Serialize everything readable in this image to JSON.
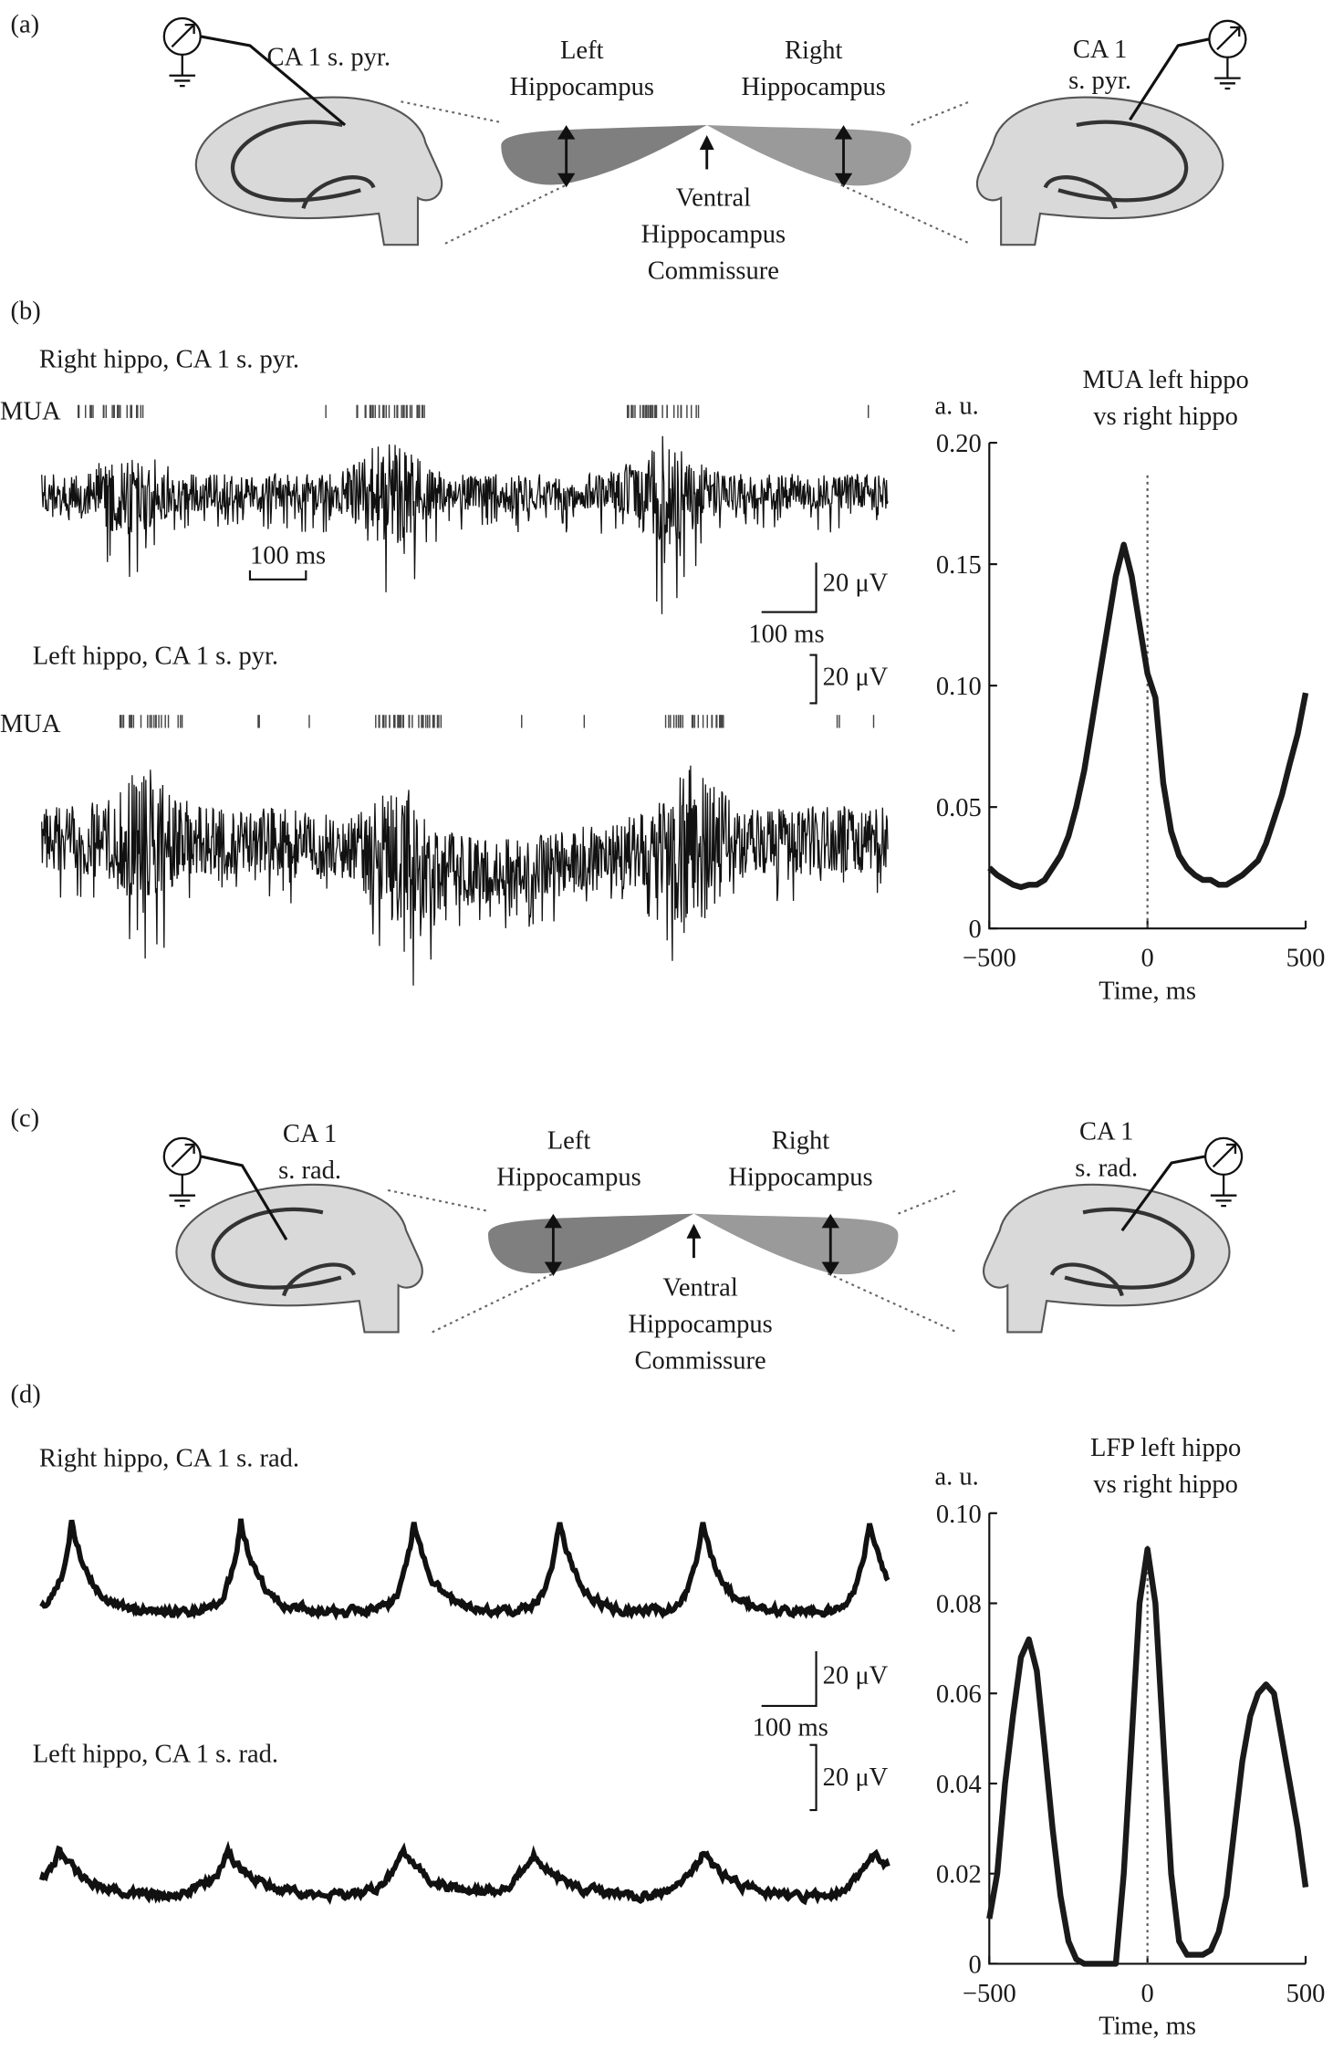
{
  "panel_labels": [
    "(a)",
    "(b)",
    "(c)",
    "(d)"
  ],
  "diagram_a": {
    "left_site": "CA 1 s. pyr.",
    "right_site": [
      "CA 1",
      "s. pyr."
    ],
    "left_label": [
      "Left",
      "Hippocampus"
    ],
    "right_label": [
      "Right",
      "Hippocampus"
    ],
    "commissure": [
      "Ventral",
      "Hippocampus",
      "Commissure"
    ]
  },
  "traces_b": {
    "top_label": "Right hippo, CA 1 s. pyr.",
    "mua_top": "MUA",
    "scale_time_inner": "100 ms",
    "scale_amp_top": "20 μV",
    "scale_time": "100 ms",
    "bottom_label": "Left hippo, CA 1 s. pyr.",
    "scale_amp_bottom": "20 μV",
    "mua_bottom": "MUA"
  },
  "diagram_c": {
    "left_site": [
      "CA 1",
      "s. rad."
    ],
    "right_site": [
      "CA 1",
      "s. rad."
    ],
    "left_label": [
      "Left",
      "Hippocampus"
    ],
    "right_label": [
      "Right",
      "Hippocampus"
    ],
    "commissure": [
      "Ventral",
      "Hippocampus",
      "Commissure"
    ]
  },
  "traces_d": {
    "top_label": "Right hippo, CA 1 s. rad.",
    "scale_amp_top": "20 μV",
    "scale_time": "100 ms",
    "bottom_label": "Left hippo, CA 1 s. rad.",
    "scale_amp_bottom": "20 μV"
  },
  "chart_data": [
    {
      "type": "line",
      "title": [
        "MUA left hippo",
        "vs right hippo"
      ],
      "ylabel": "a. u.",
      "xlabel": "Time, ms",
      "color": "#1a1a1a",
      "x": [
        -500,
        -475,
        -450,
        -425,
        -400,
        -375,
        -350,
        -325,
        -300,
        -275,
        -250,
        -225,
        -200,
        -175,
        -150,
        -125,
        -100,
        -75,
        -50,
        -25,
        0,
        25,
        50,
        75,
        100,
        125,
        150,
        175,
        200,
        225,
        250,
        275,
        300,
        325,
        350,
        375,
        400,
        425,
        450,
        475,
        500
      ],
      "values": [
        0.025,
        0.022,
        0.02,
        0.018,
        0.017,
        0.018,
        0.018,
        0.02,
        0.025,
        0.03,
        0.038,
        0.05,
        0.065,
        0.085,
        0.105,
        0.125,
        0.145,
        0.158,
        0.145,
        0.125,
        0.105,
        0.095,
        0.06,
        0.04,
        0.03,
        0.025,
        0.022,
        0.02,
        0.02,
        0.018,
        0.018,
        0.02,
        0.022,
        0.025,
        0.028,
        0.035,
        0.045,
        0.055,
        0.068,
        0.08,
        0.097
      ],
      "xlim": [
        -500,
        500
      ],
      "ylim": [
        0,
        0.2
      ],
      "xticks": [
        {
          "value": -500,
          "label": "−500"
        },
        0,
        500
      ],
      "yticks": [
        0,
        0.05,
        {
          "value": 0.1,
          "label": "0.10"
        },
        0.15,
        {
          "value": 0.2,
          "label": "0.20"
        }
      ],
      "vline": 0
    },
    {
      "type": "line",
      "title": [
        "LFP left hippo",
        "vs right hippo"
      ],
      "ylabel": "a. u.",
      "xlabel": "Time, ms",
      "color": "#1a1a1a",
      "x": [
        -500,
        -475,
        -450,
        -425,
        -400,
        -375,
        -350,
        -325,
        -300,
        -275,
        -250,
        -225,
        -200,
        -175,
        -150,
        -125,
        -100,
        -75,
        -50,
        -25,
        0,
        25,
        50,
        75,
        100,
        125,
        150,
        175,
        200,
        225,
        250,
        275,
        300,
        325,
        350,
        375,
        400,
        425,
        450,
        475,
        500
      ],
      "values": [
        0.01,
        0.02,
        0.04,
        0.055,
        0.068,
        0.072,
        0.065,
        0.048,
        0.03,
        0.015,
        0.005,
        0.001,
        0,
        0,
        0,
        0,
        0,
        0.02,
        0.05,
        0.08,
        0.092,
        0.08,
        0.05,
        0.02,
        0.005,
        0.002,
        0.002,
        0.002,
        0.003,
        0.007,
        0.015,
        0.03,
        0.045,
        0.055,
        0.06,
        0.062,
        0.06,
        0.05,
        0.04,
        0.03,
        0.017
      ],
      "xlim": [
        -500,
        500
      ],
      "ylim": [
        0,
        0.1
      ],
      "xticks": [
        {
          "value": -500,
          "label": "−500"
        },
        0,
        500
      ],
      "yticks": [
        0,
        0.02,
        0.04,
        0.06,
        0.08,
        {
          "value": 0.1,
          "label": "0.10"
        }
      ],
      "vline": 0
    }
  ]
}
